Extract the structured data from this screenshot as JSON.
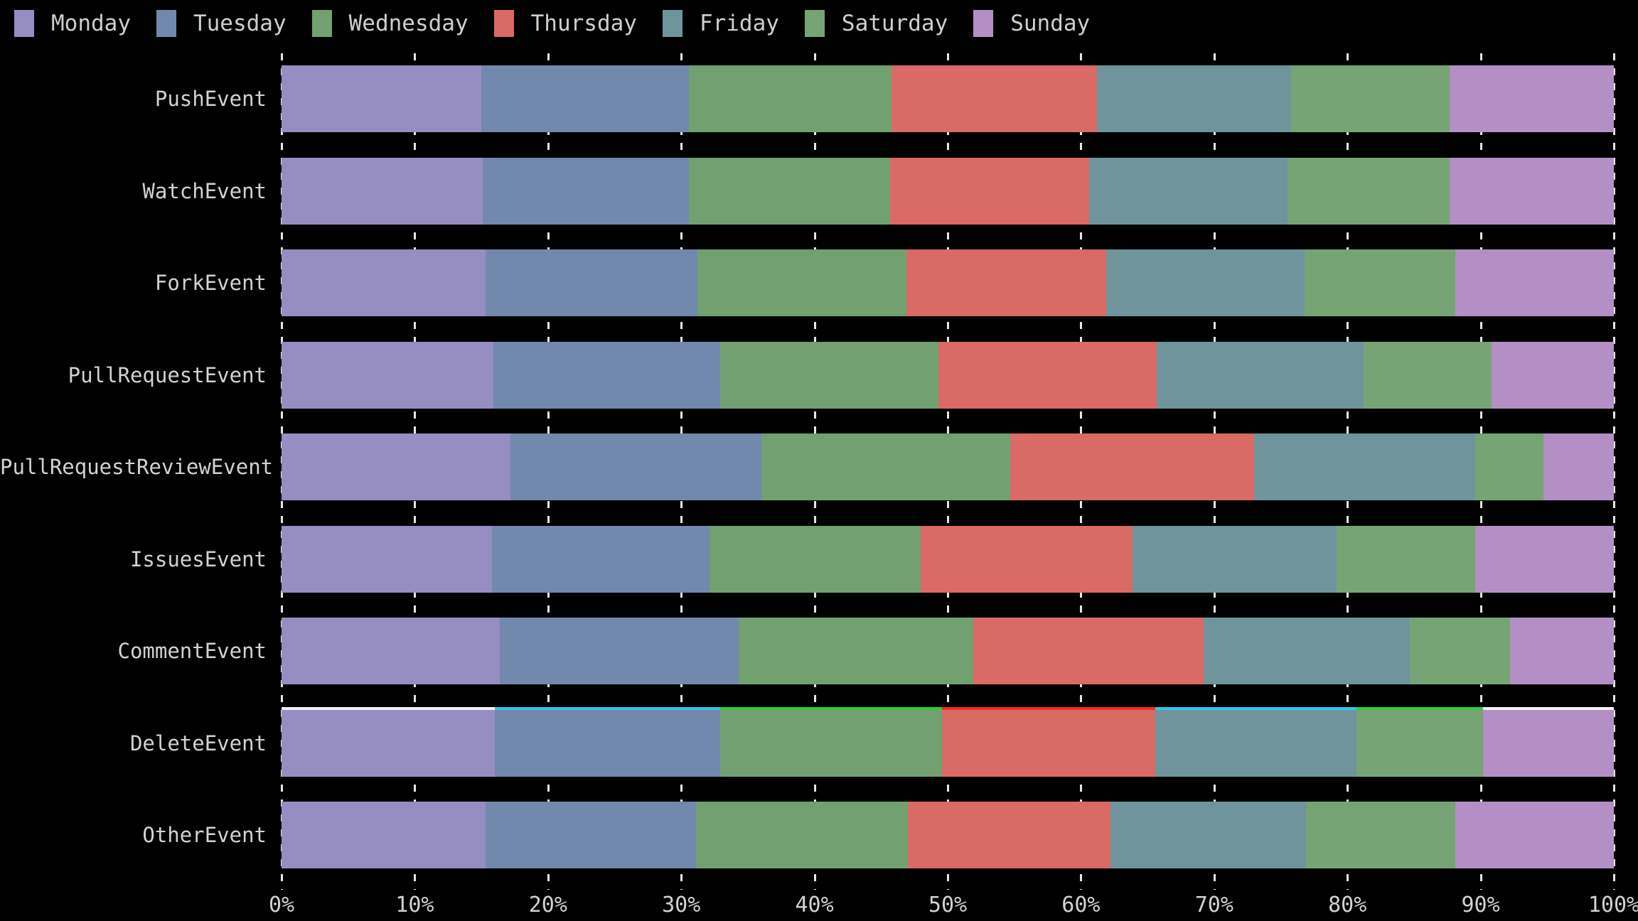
{
  "chart_data": {
    "type": "bar",
    "orientation": "horizontal",
    "stacked": true,
    "unit": "percent",
    "title": "",
    "xlabel": "",
    "ylabel": "",
    "xlim": [
      0,
      100
    ],
    "grid": "vertical-dashed",
    "legend_position": "top-left",
    "background_color": "#000000",
    "text_color": "#d2d2d2",
    "gridline_color": "#e6e6e6",
    "categories": [
      "PushEvent",
      "WatchEvent",
      "ForkEvent",
      "PullRequestEvent",
      "PullRequestReviewEvent",
      "IssuesEvent",
      "CommentEvent",
      "DeleteEvent",
      "OtherEvent"
    ],
    "x_tick_labels": [
      "0%",
      "10%",
      "20%",
      "30%",
      "40%",
      "50%",
      "60%",
      "70%",
      "80%",
      "90%",
      "100%"
    ],
    "series": [
      {
        "name": "Monday",
        "color": "#968dc2",
        "values": [
          15.0,
          15.1,
          15.3,
          15.9,
          17.2,
          15.8,
          16.4,
          16.0,
          15.3
        ]
      },
      {
        "name": "Tuesday",
        "color": "#7288ac",
        "values": [
          15.6,
          15.5,
          15.9,
          17.0,
          18.8,
          16.3,
          17.9,
          16.9,
          15.8
        ]
      },
      {
        "name": "Wednesday",
        "color": "#72a071",
        "values": [
          15.2,
          15.1,
          15.7,
          16.4,
          18.7,
          15.9,
          17.6,
          16.7,
          15.9
        ]
      },
      {
        "name": "Thursday",
        "color": "#d96a65",
        "values": [
          15.4,
          14.9,
          15.0,
          16.4,
          18.3,
          15.9,
          17.3,
          16.0,
          15.2
        ]
      },
      {
        "name": "Friday",
        "color": "#6f949c",
        "values": [
          14.6,
          14.9,
          14.9,
          15.5,
          16.6,
          15.3,
          15.5,
          15.1,
          14.7
        ]
      },
      {
        "name": "Saturday",
        "color": "#77a475",
        "values": [
          11.9,
          12.2,
          11.3,
          9.6,
          5.1,
          10.4,
          7.5,
          9.5,
          11.2
        ]
      },
      {
        "name": "Sunday",
        "color": "#b48fc5",
        "values": [
          12.3,
          12.3,
          11.9,
          9.2,
          5.3,
          10.4,
          7.8,
          9.8,
          11.9
        ]
      }
    ],
    "highlight_edge": {
      "category": "DeleteEvent",
      "description": "thin bright line along top edge of DeleteEvent bar",
      "segment_colors": [
        "#f2f2f2",
        "#2bc9e8",
        "#2ecc40",
        "#ee2d1a",
        "#2bc9e8",
        "#2ecc40",
        "#f2f2f2"
      ]
    }
  },
  "legend": {
    "items": [
      {
        "label": "Monday",
        "color": "#968dc2"
      },
      {
        "label": "Tuesday",
        "color": "#7288ac"
      },
      {
        "label": "Wednesday",
        "color": "#72a071"
      },
      {
        "label": "Thursday",
        "color": "#d96a65"
      },
      {
        "label": "Friday",
        "color": "#6f949c"
      },
      {
        "label": "Saturday",
        "color": "#77a475"
      },
      {
        "label": "Sunday",
        "color": "#b48fc5"
      }
    ]
  }
}
